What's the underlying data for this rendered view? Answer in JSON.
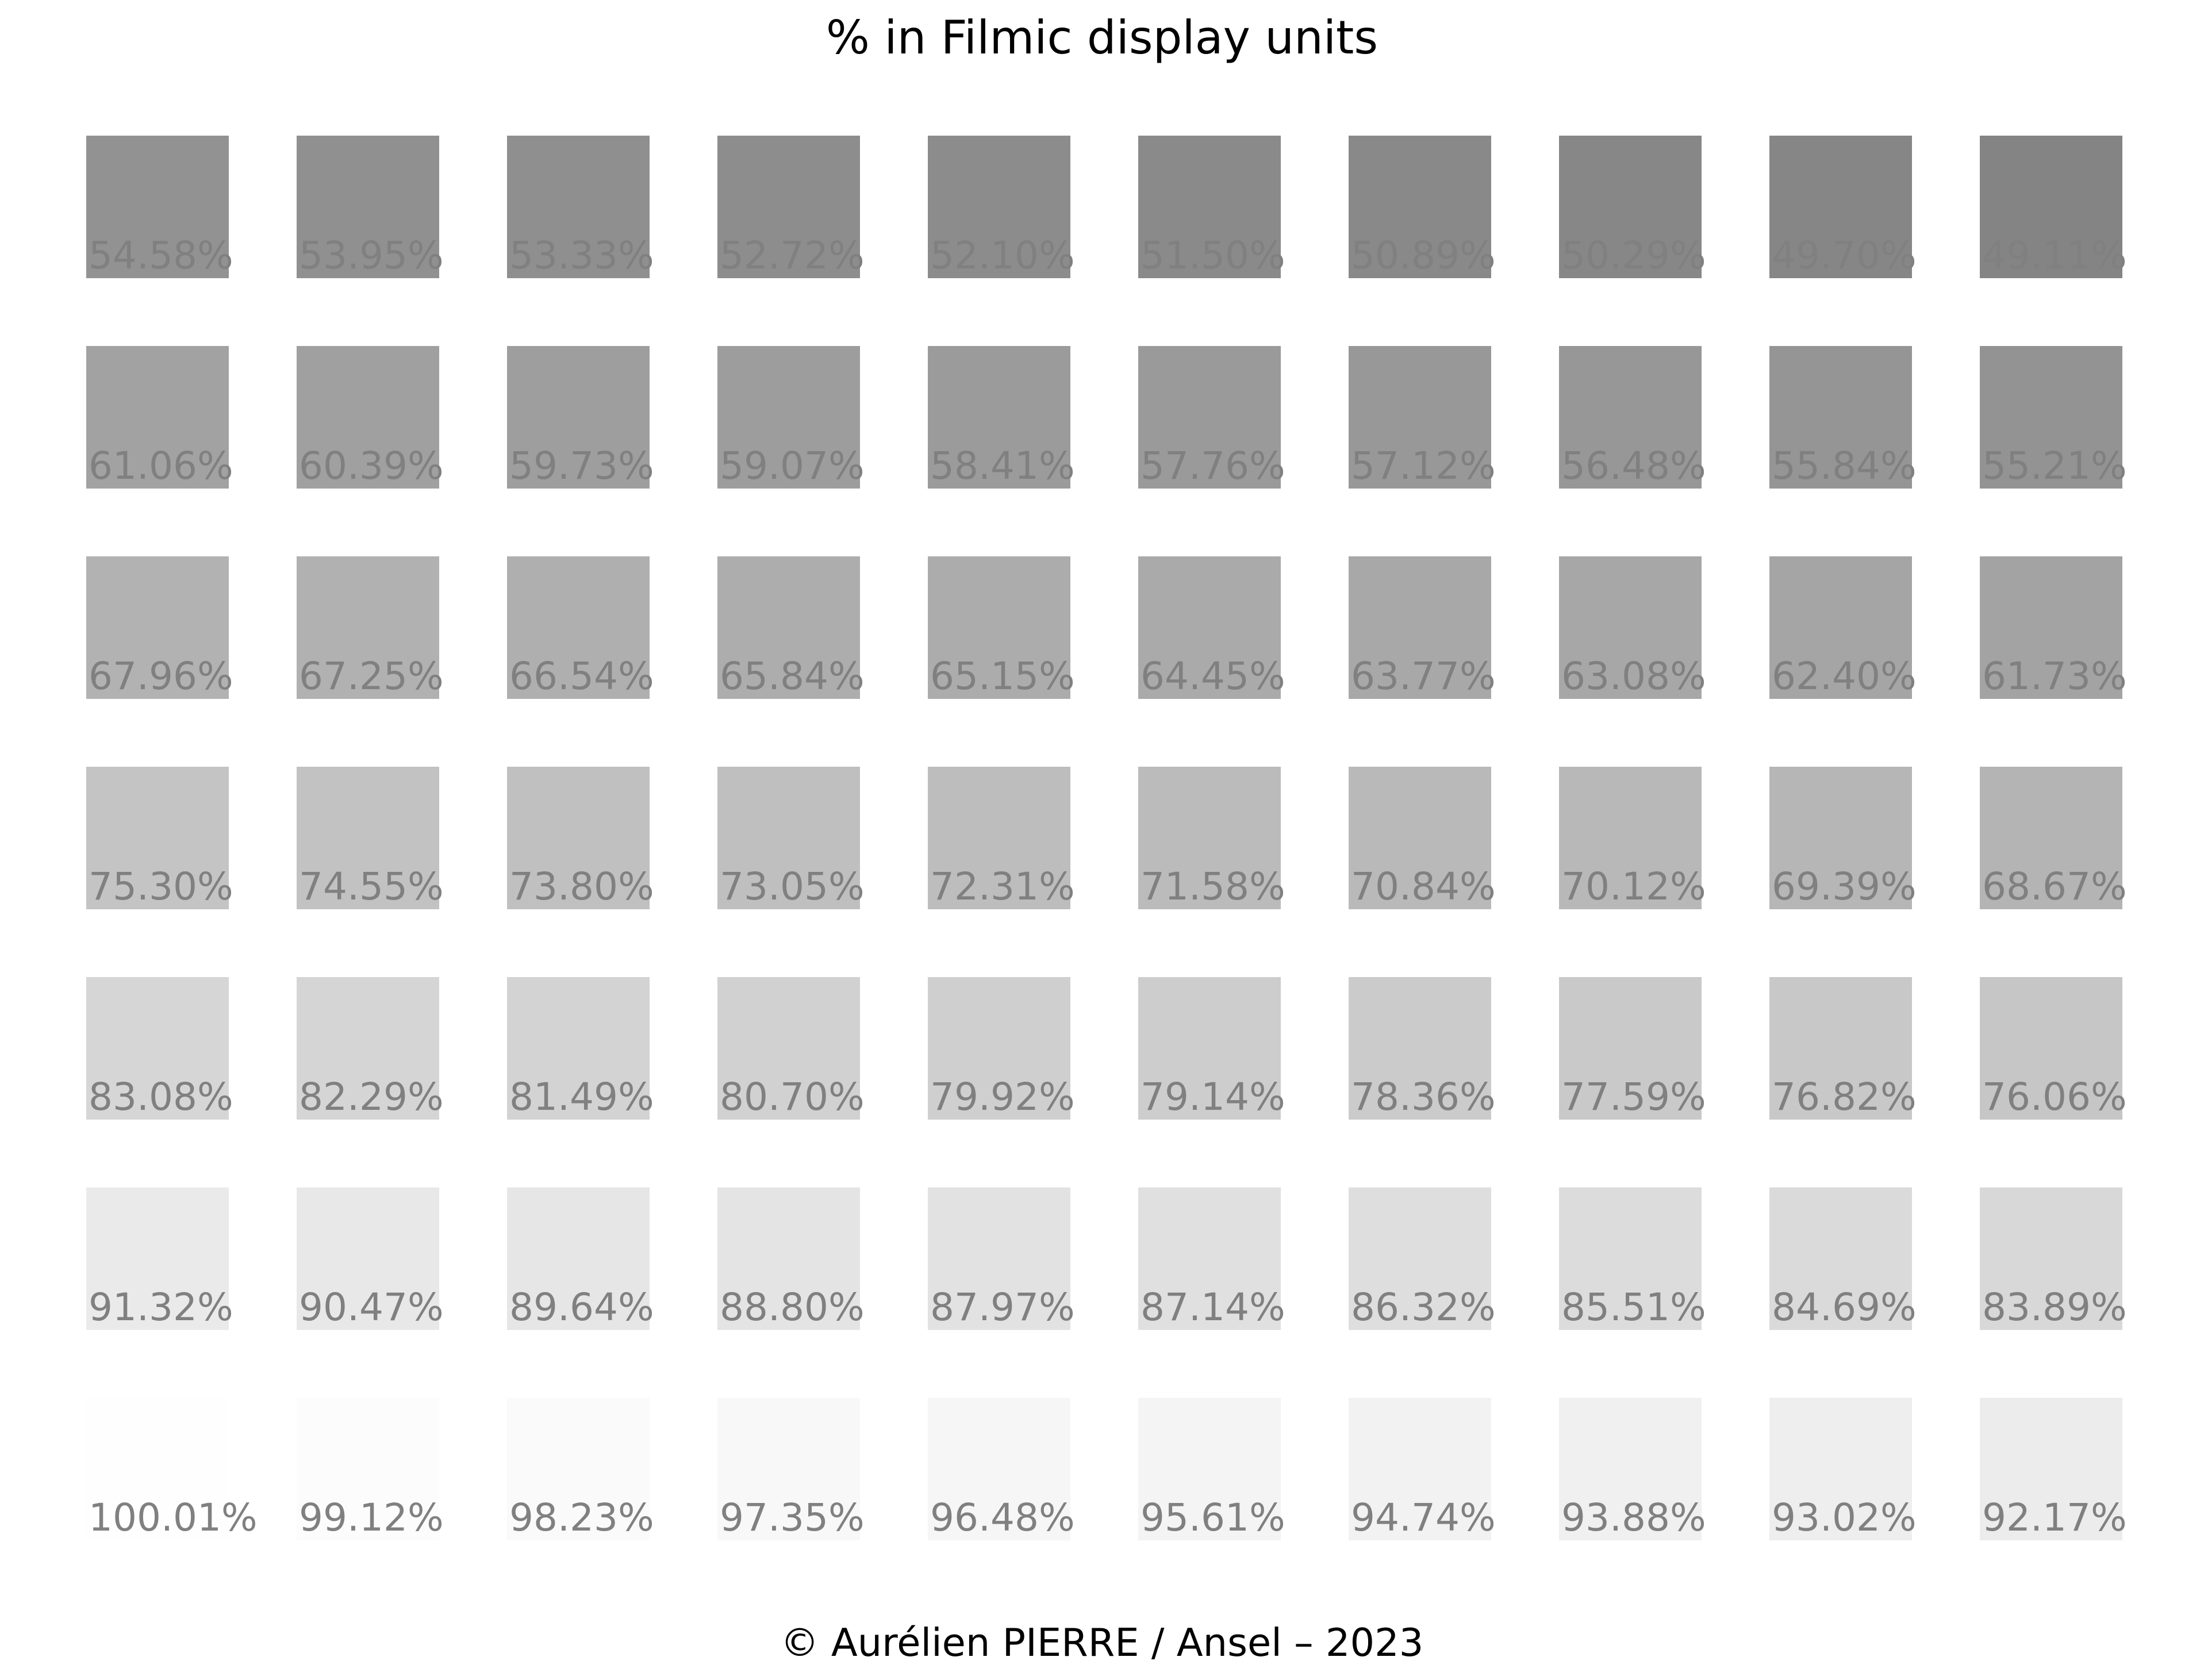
{
  "title": "% in Filmic display units",
  "footer": "© Aurélien PIERRE / Ansel – 2023",
  "label_color": "#808080",
  "chart_data": {
    "type": "heatmap",
    "title": "% in Filmic display units",
    "grid": false,
    "rows": [
      [
        54.58,
        53.95,
        53.33,
        52.72,
        52.1,
        51.5,
        50.89,
        50.29,
        49.7,
        49.11
      ],
      [
        61.06,
        60.39,
        59.73,
        59.07,
        58.41,
        57.76,
        57.12,
        56.48,
        55.84,
        55.21
      ],
      [
        67.96,
        67.25,
        66.54,
        65.84,
        65.15,
        64.45,
        63.77,
        63.08,
        62.4,
        61.73
      ],
      [
        75.3,
        74.55,
        73.8,
        73.05,
        72.31,
        71.58,
        70.84,
        70.12,
        69.39,
        68.67
      ],
      [
        83.08,
        82.29,
        81.49,
        80.7,
        79.92,
        79.14,
        78.36,
        77.59,
        76.82,
        76.06
      ],
      [
        91.32,
        90.47,
        89.64,
        88.8,
        87.97,
        87.14,
        86.32,
        85.51,
        84.69,
        83.89
      ],
      [
        100.01,
        99.12,
        98.23,
        97.35,
        96.48,
        95.61,
        94.74,
        93.88,
        93.02,
        92.17
      ]
    ],
    "labels": [
      [
        "54.58%",
        "53.95%",
        "53.33%",
        "52.72%",
        "52.10%",
        "51.50%",
        "50.89%",
        "50.29%",
        "49.70%",
        "49.11%"
      ],
      [
        "61.06%",
        "60.39%",
        "59.73%",
        "59.07%",
        "58.41%",
        "57.76%",
        "57.12%",
        "56.48%",
        "55.84%",
        "55.21%"
      ],
      [
        "67.96%",
        "67.25%",
        "66.54%",
        "65.84%",
        "65.15%",
        "64.45%",
        "63.77%",
        "63.08%",
        "62.40%",
        "61.73%"
      ],
      [
        "75.30%",
        "74.55%",
        "73.80%",
        "73.05%",
        "72.31%",
        "71.58%",
        "70.84%",
        "70.12%",
        "69.39%",
        "68.67%"
      ],
      [
        "83.08%",
        "82.29%",
        "81.49%",
        "80.70%",
        "79.92%",
        "79.14%",
        "78.36%",
        "77.59%",
        "76.82%",
        "76.06%"
      ],
      [
        "91.32%",
        "90.47%",
        "89.64%",
        "88.80%",
        "87.97%",
        "87.14%",
        "86.32%",
        "85.51%",
        "84.69%",
        "83.89%"
      ],
      [
        "100.01%",
        "99.12%",
        "98.23%",
        "97.35%",
        "96.48%",
        "95.61%",
        "94.74%",
        "93.88%",
        "93.02%",
        "92.17%"
      ]
    ]
  }
}
